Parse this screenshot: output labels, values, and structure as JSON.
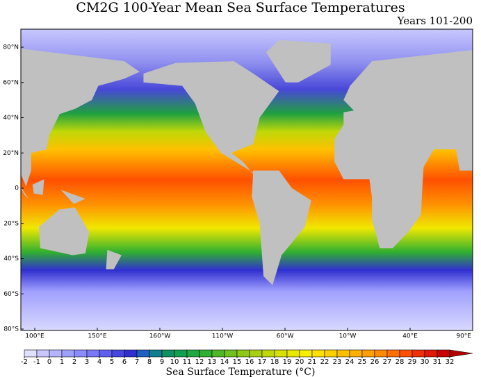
{
  "title": "CM2G 100-Year Mean Sea Surface Temperatures",
  "subtitle": "Years 101-200",
  "map": {
    "lat_labels": [
      "80°N",
      "60°N",
      "40°N",
      "20°N",
      "0",
      "20°S",
      "40°S",
      "60°S",
      "80°S"
    ],
    "lon_labels": [
      "100°E",
      "150°E",
      "160°W",
      "110°W",
      "60°W",
      "10°W",
      "40°E",
      "90°E"
    ]
  },
  "colorbar": {
    "ticks": [
      -2,
      -1,
      0,
      1,
      2,
      3,
      4,
      5,
      6,
      7,
      8,
      9,
      10,
      11,
      12,
      13,
      14,
      15,
      16,
      17,
      18,
      19,
      20,
      21,
      22,
      23,
      24,
      25,
      26,
      27,
      28,
      29,
      30,
      31,
      32
    ],
    "colors": [
      "#e0e0ff",
      "#c8c8ff",
      "#b4b4ff",
      "#a0a0ff",
      "#8c8cff",
      "#7878f8",
      "#6060f0",
      "#4848e0",
      "#3030d0",
      "#2060c0",
      "#108090",
      "#109060",
      "#10a050",
      "#20a840",
      "#30b030",
      "#50b828",
      "#70c020",
      "#90c818",
      "#a8d010",
      "#c0d808",
      "#d8e000",
      "#e8e800",
      "#f8f000",
      "#ffe000",
      "#ffd000",
      "#ffc000",
      "#ffb000",
      "#ffa000",
      "#ff8c00",
      "#ff7000",
      "#ff5000",
      "#f03000",
      "#e01800",
      "#c80000",
      "#b00000"
    ],
    "label": "Sea Surface Temperature (°C)"
  }
}
